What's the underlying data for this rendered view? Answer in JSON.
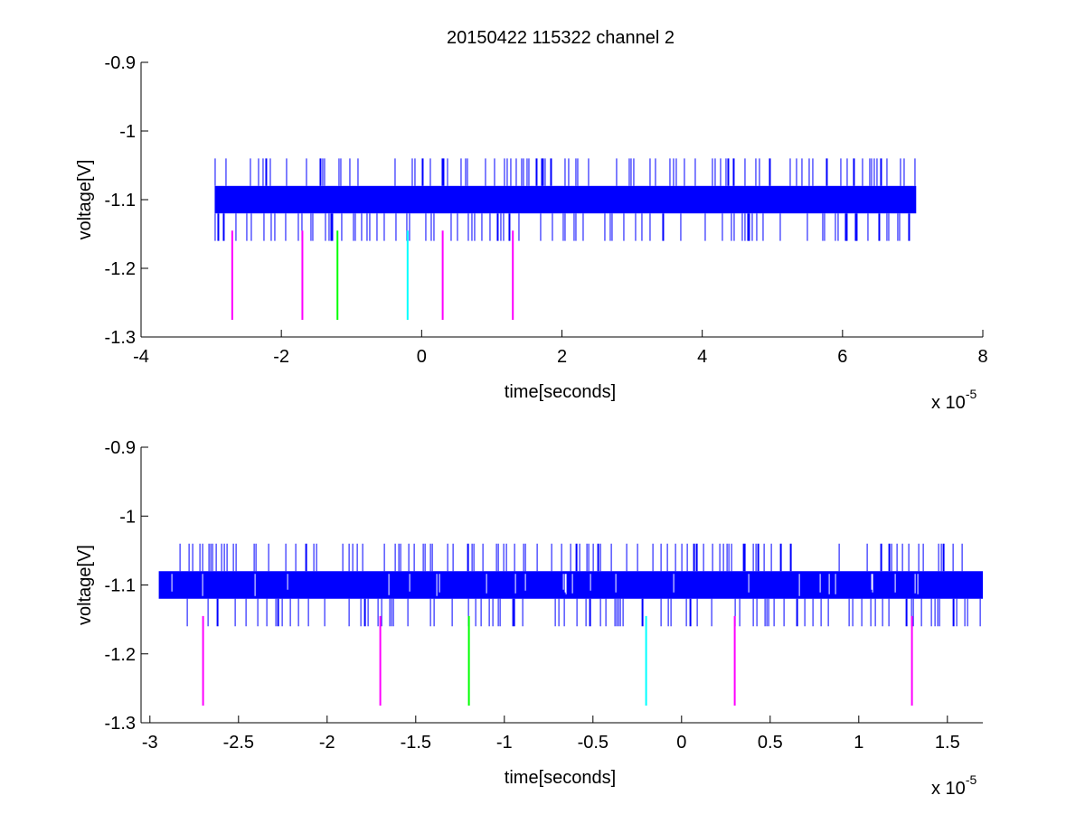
{
  "title": "20150422 115322 channel 2",
  "colors": {
    "signal": "#0000ff",
    "marker_magenta": "#ff00ff",
    "marker_green": "#00ff00",
    "marker_cyan": "#00ffff",
    "axes": "#000000",
    "background": "#ffffff"
  },
  "chart_data": [
    {
      "type": "line",
      "title": "20150422 115322 channel 2",
      "xlabel": "time[seconds]",
      "ylabel": "voltage[V]",
      "x_exponent_label": "x 10",
      "x_exponent": "-5",
      "xlim": [
        -4,
        8
      ],
      "ylim": [
        -1.3,
        -0.9
      ],
      "x_ticks": [
        -4,
        -2,
        0,
        2,
        4,
        6,
        8
      ],
      "x_tick_labels": [
        "-4",
        "-2",
        "0",
        "2",
        "4",
        "6",
        "8"
      ],
      "y_ticks": [
        -1.3,
        -1.2,
        -1.1,
        -1.0,
        -0.9
      ],
      "y_tick_labels": [
        "-1.3",
        "-1.2",
        "-1.1",
        "-1",
        "-0.9"
      ],
      "grid": false,
      "legend": "none",
      "series": [
        {
          "x_range": [
            -2.95,
            7.05
          ],
          "levels": [
            -1.16,
            -1.12,
            -1.08,
            -1.04
          ],
          "band": [
            -1.12,
            -1.08
          ],
          "style": "noisy quantized signal"
        }
      ],
      "markers": [
        {
          "x": -2.7,
          "y_range": [
            -1.275,
            -1.145
          ],
          "color": "magenta"
        },
        {
          "x": -1.7,
          "y_range": [
            -1.275,
            -1.145
          ],
          "color": "magenta"
        },
        {
          "x": -1.2,
          "y_range": [
            -1.275,
            -1.145
          ],
          "color": "green"
        },
        {
          "x": -0.2,
          "y_range": [
            -1.275,
            -1.145
          ],
          "color": "cyan"
        },
        {
          "x": 0.3,
          "y_range": [
            -1.275,
            -1.145
          ],
          "color": "magenta"
        },
        {
          "x": 1.3,
          "y_range": [
            -1.275,
            -1.145
          ],
          "color": "magenta"
        }
      ]
    },
    {
      "type": "line",
      "title": "",
      "xlabel": "time[seconds]",
      "ylabel": "voltage[V]",
      "x_exponent_label": "x 10",
      "x_exponent": "-5",
      "xlim": [
        -3.05,
        1.7
      ],
      "ylim": [
        -1.3,
        -0.9
      ],
      "x_ticks": [
        -3,
        -2.5,
        -2,
        -1.5,
        -1,
        -0.5,
        0,
        0.5,
        1,
        1.5
      ],
      "x_tick_labels": [
        "-3",
        "-2.5",
        "-2",
        "-1.5",
        "-1",
        "-0.5",
        "0",
        "0.5",
        "1",
        "1.5"
      ],
      "y_ticks": [
        -1.3,
        -1.2,
        -1.1,
        -1.0,
        -0.9
      ],
      "y_tick_labels": [
        "-1.3",
        "-1.2",
        "-1.1",
        "-1",
        "-0.9"
      ],
      "grid": false,
      "legend": "none",
      "series": [
        {
          "x_range": [
            -2.95,
            1.7
          ],
          "levels": [
            -1.16,
            -1.12,
            -1.08,
            -1.04
          ],
          "band": [
            -1.12,
            -1.08
          ],
          "style": "noisy quantized signal"
        }
      ],
      "markers": [
        {
          "x": -2.7,
          "y_range": [
            -1.275,
            -1.145
          ],
          "color": "magenta"
        },
        {
          "x": -1.7,
          "y_range": [
            -1.275,
            -1.145
          ],
          "color": "magenta"
        },
        {
          "x": -1.2,
          "y_range": [
            -1.275,
            -1.145
          ],
          "color": "green"
        },
        {
          "x": -0.2,
          "y_range": [
            -1.275,
            -1.145
          ],
          "color": "cyan"
        },
        {
          "x": 0.3,
          "y_range": [
            -1.275,
            -1.145
          ],
          "color": "magenta"
        },
        {
          "x": 1.3,
          "y_range": [
            -1.275,
            -1.145
          ],
          "color": "magenta"
        }
      ]
    }
  ]
}
